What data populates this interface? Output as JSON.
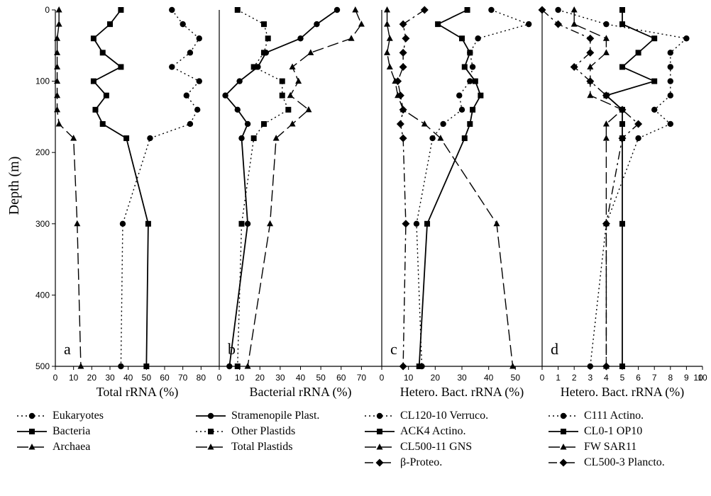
{
  "y_axis_title": "Depth (m)",
  "y_ticks": [
    0,
    100,
    200,
    300,
    400,
    500
  ],
  "chart_data": [
    {
      "type": "line",
      "panel_label": "a",
      "xlabel": "Total rRNA (%)",
      "xlim": [
        0,
        90
      ],
      "ylim": [
        500,
        0
      ],
      "x_ticks": [
        0,
        10,
        20,
        30,
        40,
        50,
        60,
        70,
        80
      ],
      "series": [
        {
          "name": "Eukaryotes",
          "style": "dotted",
          "marker": "circle",
          "points": [
            [
              64,
              0
            ],
            [
              70,
              20
            ],
            [
              79,
              40
            ],
            [
              74,
              60
            ],
            [
              64,
              80
            ],
            [
              79,
              100
            ],
            [
              72,
              120
            ],
            [
              78,
              140
            ],
            [
              74,
              160
            ],
            [
              52,
              180
            ],
            [
              37,
              300
            ],
            [
              36,
              500
            ]
          ]
        },
        {
          "name": "Bacteria",
          "style": "solid",
          "marker": "square",
          "points": [
            [
              36,
              0
            ],
            [
              30,
              20
            ],
            [
              21,
              40
            ],
            [
              26,
              60
            ],
            [
              36,
              80
            ],
            [
              21,
              100
            ],
            [
              28,
              120
            ],
            [
              22,
              140
            ],
            [
              26,
              160
            ],
            [
              39,
              180
            ],
            [
              51,
              300
            ],
            [
              50,
              500
            ]
          ]
        },
        {
          "name": "Archaea",
          "style": "longdash",
          "marker": "triangle",
          "points": [
            [
              2,
              0
            ],
            [
              2,
              20
            ],
            [
              1,
              40
            ],
            [
              1,
              60
            ],
            [
              1,
              80
            ],
            [
              1,
              100
            ],
            [
              1,
              120
            ],
            [
              1,
              140
            ],
            [
              2,
              160
            ],
            [
              10,
              180
            ],
            [
              12,
              300
            ],
            [
              14,
              500
            ]
          ]
        }
      ]
    },
    {
      "type": "line",
      "panel_label": "b",
      "xlabel": "Bacterial rRNA (%)",
      "xlim": [
        0,
        80
      ],
      "ylim": [
        500,
        0
      ],
      "x_ticks": [
        0,
        10,
        20,
        30,
        40,
        50,
        60,
        70
      ],
      "series": [
        {
          "name": "Stramenopile Plast.",
          "style": "solid",
          "marker": "circle",
          "points": [
            [
              58,
              0
            ],
            [
              48,
              20
            ],
            [
              40,
              40
            ],
            [
              23,
              60
            ],
            [
              19,
              80
            ],
            [
              10,
              100
            ],
            [
              3,
              120
            ],
            [
              9,
              140
            ],
            [
              14,
              160
            ],
            [
              11,
              180
            ],
            [
              14,
              300
            ],
            [
              5,
              500
            ]
          ]
        },
        {
          "name": "Other Plastids",
          "style": "dotted",
          "marker": "square",
          "points": [
            [
              9,
              0
            ],
            [
              22,
              20
            ],
            [
              24,
              40
            ],
            [
              22,
              60
            ],
            [
              17,
              80
            ],
            [
              31,
              100
            ],
            [
              31,
              120
            ],
            [
              34,
              140
            ],
            [
              22,
              160
            ],
            [
              17,
              180
            ],
            [
              11,
              300
            ],
            [
              9,
              500
            ]
          ]
        },
        {
          "name": "Total Plastids",
          "style": "longdash",
          "marker": "triangle",
          "points": [
            [
              67,
              0
            ],
            [
              70,
              20
            ],
            [
              65,
              40
            ],
            [
              45,
              60
            ],
            [
              36,
              80
            ],
            [
              39,
              100
            ],
            [
              35,
              120
            ],
            [
              44,
              140
            ],
            [
              36,
              160
            ],
            [
              28,
              180
            ],
            [
              25,
              300
            ],
            [
              14,
              500
            ]
          ]
        }
      ]
    },
    {
      "type": "line",
      "panel_label": "c",
      "xlabel": "Hetero. Bact. rRNA (%)",
      "xlim": [
        0,
        60
      ],
      "ylim": [
        500,
        0
      ],
      "x_ticks": [
        0,
        10,
        20,
        30,
        40,
        50
      ],
      "series": [
        {
          "name": "CL120-10 Verruco.",
          "style": "dotted",
          "marker": "circle",
          "points": [
            [
              41,
              0
            ],
            [
              55,
              20
            ],
            [
              36,
              40
            ],
            [
              33,
              60
            ],
            [
              34,
              80
            ],
            [
              33,
              100
            ],
            [
              29,
              120
            ],
            [
              30,
              140
            ],
            [
              23,
              160
            ],
            [
              19,
              180
            ],
            [
              13,
              300
            ],
            [
              15,
              500
            ]
          ]
        },
        {
          "name": "ACK4 Actino.",
          "style": "solid",
          "marker": "square",
          "points": [
            [
              32,
              0
            ],
            [
              21,
              20
            ],
            [
              30,
              40
            ],
            [
              33,
              60
            ],
            [
              31,
              80
            ],
            [
              35,
              100
            ],
            [
              37,
              120
            ],
            [
              34,
              140
            ],
            [
              33,
              160
            ],
            [
              31,
              180
            ],
            [
              17,
              300
            ],
            [
              14,
              500
            ]
          ]
        },
        {
          "name": "CL500-11 GNS",
          "style": "longdash",
          "marker": "triangle",
          "points": [
            [
              2,
              0
            ],
            [
              2,
              20
            ],
            [
              3,
              40
            ],
            [
              2,
              60
            ],
            [
              3,
              80
            ],
            [
              5,
              100
            ],
            [
              6,
              120
            ],
            [
              8,
              140
            ],
            [
              16,
              160
            ],
            [
              22,
              180
            ],
            [
              43,
              300
            ],
            [
              49,
              500
            ]
          ]
        },
        {
          "name": "β-Proteo.",
          "style": "dashdot",
          "marker": "diamond",
          "points": [
            [
              16,
              0
            ],
            [
              8,
              20
            ],
            [
              9,
              40
            ],
            [
              8,
              60
            ],
            [
              8,
              80
            ],
            [
              6,
              100
            ],
            [
              7,
              120
            ],
            [
              8,
              140
            ],
            [
              7,
              160
            ],
            [
              8,
              180
            ],
            [
              9,
              300
            ],
            [
              8,
              500
            ]
          ]
        }
      ]
    },
    {
      "type": "line",
      "panel_label": "d",
      "xlabel": "Hetero. Bact. rRNA (%)",
      "xlim": [
        0,
        10
      ],
      "ylim": [
        500,
        0
      ],
      "x_ticks": [
        0,
        1,
        2,
        3,
        4,
        5,
        6,
        7,
        8,
        9,
        10
      ],
      "series": [
        {
          "name": "C111 Actino.",
          "style": "dotted",
          "marker": "circle",
          "points": [
            [
              1,
              0
            ],
            [
              4,
              20
            ],
            [
              9,
              40
            ],
            [
              8,
              60
            ],
            [
              8,
              80
            ],
            [
              8,
              100
            ],
            [
              8,
              120
            ],
            [
              7,
              140
            ],
            [
              8,
              160
            ],
            [
              6,
              180
            ],
            [
              4,
              300
            ],
            [
              3,
              500
            ]
          ]
        },
        {
          "name": "CL0-1 OP10",
          "style": "solid",
          "marker": "square",
          "points": [
            [
              5,
              0
            ],
            [
              5,
              20
            ],
            [
              7,
              40
            ],
            [
              6,
              60
            ],
            [
              5,
              80
            ],
            [
              7,
              100
            ],
            [
              4,
              120
            ],
            [
              5,
              140
            ],
            [
              5,
              160
            ],
            [
              5,
              180
            ],
            [
              5,
              300
            ],
            [
              5,
              500
            ]
          ]
        },
        {
          "name": "FW SAR11",
          "style": "longdash",
          "marker": "triangle",
          "points": [
            [
              2,
              0
            ],
            [
              2,
              20
            ],
            [
              4,
              40
            ],
            [
              4,
              60
            ],
            [
              3,
              80
            ],
            [
              3,
              100
            ],
            [
              3,
              120
            ],
            [
              5,
              140
            ],
            [
              4,
              160
            ],
            [
              4,
              180
            ],
            [
              4,
              300
            ],
            [
              4,
              500
            ]
          ]
        },
        {
          "name": "CL500-3 Plancto.",
          "style": "dashdot",
          "marker": "diamond",
          "points": [
            [
              0,
              0
            ],
            [
              1,
              20
            ],
            [
              3,
              40
            ],
            [
              3,
              60
            ],
            [
              2,
              80
            ],
            [
              3,
              100
            ],
            [
              4,
              120
            ],
            [
              5,
              140
            ],
            [
              6,
              160
            ],
            [
              5,
              180
            ],
            [
              4,
              300
            ],
            [
              4,
              500
            ]
          ]
        }
      ]
    }
  ]
}
